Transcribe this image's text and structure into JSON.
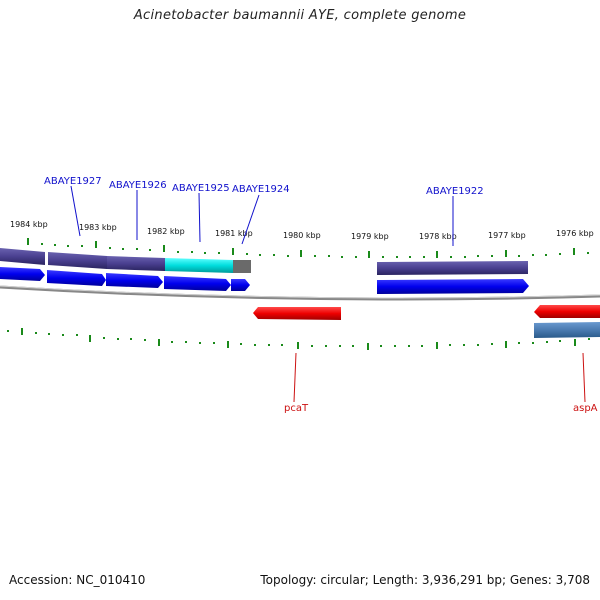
{
  "header": {
    "title": "Acinetobacter baumannii AYE, complete genome"
  },
  "footer": {
    "accession": "Accession: NC_010410",
    "summary": "Topology: circular; Length: 3,936,291 bp; Genes: 3,708"
  },
  "ruler": {
    "labels": [
      "1984 kbp",
      "1983 kbp",
      "1982 kbp",
      "1981 kbp",
      "1980 kbp",
      "1979 kbp",
      "1978 kbp",
      "1977 kbp",
      "1976 kbp"
    ]
  },
  "genes": {
    "abaye1927": "ABAYE1927",
    "abaye1926": "ABAYE1926",
    "abaye1925": "ABAYE1925",
    "abaye1924": "ABAYE1924",
    "abaye1922": "ABAYE1922",
    "pcat": "pcaT",
    "aspa": "aspA"
  },
  "colors": {
    "forward_cds": "#0000ee",
    "reverse_cds": "#ee0000",
    "gene_bar": "#4a4090",
    "highlight": "#00dddd",
    "tick_green": "#1a8a1a",
    "backbone": "#999999"
  }
}
